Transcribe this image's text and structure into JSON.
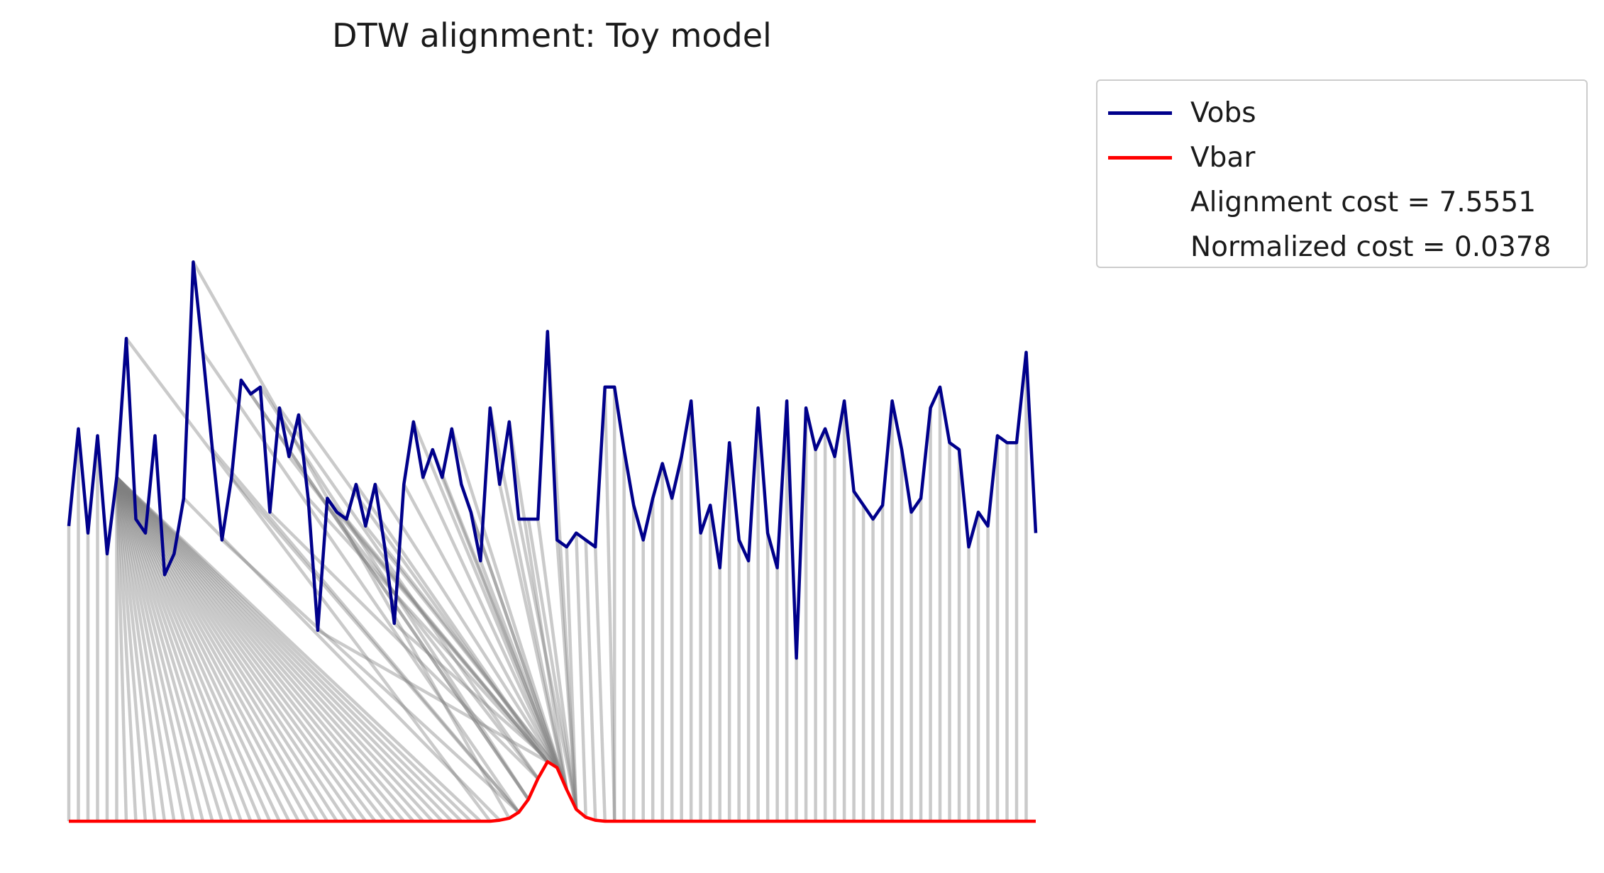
{
  "chart_data": {
    "type": "line",
    "title": "DTW alignment: Toy model",
    "xlabel": "",
    "ylabel": "",
    "axes_visible": false,
    "grid": false,
    "legend_placement": "outside-top-right",
    "series": [
      {
        "name": "Vobs",
        "color": "#00008b",
        "values": [
          3.2,
          4.6,
          3.1,
          4.5,
          2.8,
          3.9,
          5.9,
          3.3,
          3.1,
          4.5,
          2.5,
          2.8,
          3.6,
          7.0,
          5.7,
          4.3,
          3.0,
          3.9,
          5.3,
          5.1,
          5.2,
          3.4,
          4.9,
          4.2,
          4.8,
          3.6,
          1.7,
          3.6,
          3.4,
          3.3,
          3.8,
          3.2,
          3.8,
          2.9,
          1.8,
          3.8,
          4.7,
          3.9,
          4.3,
          3.9,
          4.6,
          3.8,
          3.4,
          2.7,
          4.9,
          3.8,
          4.7,
          3.3,
          3.3,
          3.3,
          6.0,
          3.0,
          2.9,
          3.1,
          3.0,
          2.9,
          5.2,
          5.2,
          4.3,
          3.5,
          3.0,
          3.6,
          4.1,
          3.6,
          4.2,
          5.0,
          3.1,
          3.5,
          2.6,
          4.4,
          3.0,
          2.7,
          4.9,
          3.1,
          2.6,
          5.0,
          1.3,
          4.9,
          4.3,
          4.6,
          4.2,
          5.0,
          3.7,
          3.5,
          3.3,
          3.5,
          5.0,
          4.3,
          3.4,
          3.6,
          4.9,
          5.2,
          4.4,
          4.3,
          2.9,
          3.4,
          3.2,
          4.5,
          4.4,
          4.4,
          5.7,
          3.1
        ]
      },
      {
        "name": "Vbar",
        "color": "#ff0000",
        "values": [
          0,
          0,
          0,
          0,
          0,
          0,
          0,
          0,
          0,
          0,
          0,
          0,
          0,
          0,
          0,
          0,
          0,
          0,
          0,
          0,
          0,
          0,
          0,
          0,
          0,
          0,
          0,
          0,
          0,
          0,
          0,
          0,
          0,
          0,
          0,
          0,
          0,
          0,
          0,
          0,
          0,
          0,
          0,
          0,
          0,
          0.01,
          0.03,
          0.09,
          0.22,
          0.43,
          0.6,
          0.54,
          0.32,
          0.12,
          0.04,
          0.01,
          0,
          0,
          0,
          0,
          0,
          0,
          0,
          0,
          0,
          0,
          0,
          0,
          0,
          0,
          0,
          0,
          0,
          0,
          0,
          0,
          0,
          0,
          0,
          0,
          0,
          0,
          0,
          0,
          0,
          0,
          0,
          0,
          0,
          0,
          0,
          0,
          0,
          0,
          0,
          0,
          0,
          0,
          0,
          0,
          0,
          0
        ]
      }
    ],
    "connector_color": "#808080",
    "alignment_path": [
      [
        0,
        0
      ],
      [
        1,
        1
      ],
      [
        2,
        2
      ],
      [
        3,
        3
      ],
      [
        4,
        4
      ],
      [
        5,
        5
      ],
      [
        5,
        6
      ],
      [
        5,
        7
      ],
      [
        5,
        8
      ],
      [
        5,
        9
      ],
      [
        5,
        10
      ],
      [
        5,
        11
      ],
      [
        5,
        12
      ],
      [
        5,
        13
      ],
      [
        5,
        14
      ],
      [
        5,
        15
      ],
      [
        5,
        16
      ],
      [
        5,
        17
      ],
      [
        5,
        18
      ],
      [
        5,
        19
      ],
      [
        5,
        20
      ],
      [
        5,
        21
      ],
      [
        5,
        22
      ],
      [
        5,
        23
      ],
      [
        5,
        24
      ],
      [
        5,
        25
      ],
      [
        5,
        26
      ],
      [
        5,
        27
      ],
      [
        5,
        28
      ],
      [
        5,
        29
      ],
      [
        5,
        30
      ],
      [
        5,
        31
      ],
      [
        5,
        32
      ],
      [
        5,
        33
      ],
      [
        5,
        34
      ],
      [
        5,
        35
      ],
      [
        5,
        36
      ],
      [
        5,
        37
      ],
      [
        5,
        38
      ],
      [
        5,
        39
      ],
      [
        5,
        40
      ],
      [
        5,
        41
      ],
      [
        5,
        42
      ],
      [
        5,
        43
      ],
      [
        6,
        44
      ],
      [
        12,
        45
      ],
      [
        13,
        46
      ],
      [
        14,
        47
      ],
      [
        15,
        47
      ],
      [
        16,
        47
      ],
      [
        17,
        47
      ],
      [
        18,
        48
      ],
      [
        19,
        48
      ],
      [
        20,
        48
      ],
      [
        21,
        49
      ],
      [
        22,
        49
      ],
      [
        23,
        49
      ],
      [
        24,
        50
      ],
      [
        25,
        50
      ],
      [
        26,
        50
      ],
      [
        27,
        50
      ],
      [
        28,
        50
      ],
      [
        29,
        50
      ],
      [
        30,
        50
      ],
      [
        31,
        51
      ],
      [
        32,
        51
      ],
      [
        33,
        51
      ],
      [
        34,
        51
      ],
      [
        35,
        51
      ],
      [
        36,
        51
      ],
      [
        37,
        51
      ],
      [
        38,
        52
      ],
      [
        39,
        52
      ],
      [
        40,
        52
      ],
      [
        41,
        52
      ],
      [
        42,
        52
      ],
      [
        43,
        52
      ],
      [
        44,
        52
      ],
      [
        45,
        52
      ],
      [
        46,
        52
      ],
      [
        47,
        53
      ],
      [
        48,
        53
      ],
      [
        49,
        53
      ],
      [
        50,
        53
      ],
      [
        51,
        53
      ],
      [
        52,
        53
      ],
      [
        53,
        54
      ],
      [
        54,
        55
      ],
      [
        55,
        56
      ],
      [
        56,
        57
      ],
      [
        57,
        57
      ],
      [
        58,
        58
      ],
      [
        59,
        59
      ],
      [
        60,
        60
      ],
      [
        61,
        61
      ],
      [
        62,
        62
      ],
      [
        63,
        63
      ],
      [
        64,
        64
      ],
      [
        65,
        65
      ],
      [
        66,
        66
      ],
      [
        67,
        67
      ],
      [
        68,
        68
      ],
      [
        69,
        69
      ],
      [
        70,
        70
      ],
      [
        71,
        71
      ],
      [
        72,
        72
      ],
      [
        73,
        73
      ],
      [
        74,
        74
      ],
      [
        75,
        75
      ],
      [
        76,
        76
      ],
      [
        77,
        77
      ],
      [
        78,
        78
      ],
      [
        79,
        79
      ],
      [
        80,
        80
      ],
      [
        81,
        81
      ],
      [
        82,
        82
      ],
      [
        83,
        83
      ],
      [
        84,
        84
      ],
      [
        85,
        85
      ],
      [
        86,
        86
      ],
      [
        87,
        87
      ],
      [
        88,
        88
      ],
      [
        89,
        89
      ],
      [
        90,
        90
      ],
      [
        91,
        91
      ],
      [
        92,
        92
      ],
      [
        93,
        93
      ],
      [
        94,
        94
      ],
      [
        95,
        95
      ],
      [
        96,
        96
      ],
      [
        97,
        97
      ],
      [
        98,
        98
      ],
      [
        99,
        99
      ],
      [
        100,
        100
      ]
    ],
    "legend": {
      "entries": [
        "Vobs",
        "Vbar"
      ],
      "notes": [
        "Alignment cost = 7.5551",
        "Normalized cost = 0.0378"
      ]
    }
  }
}
